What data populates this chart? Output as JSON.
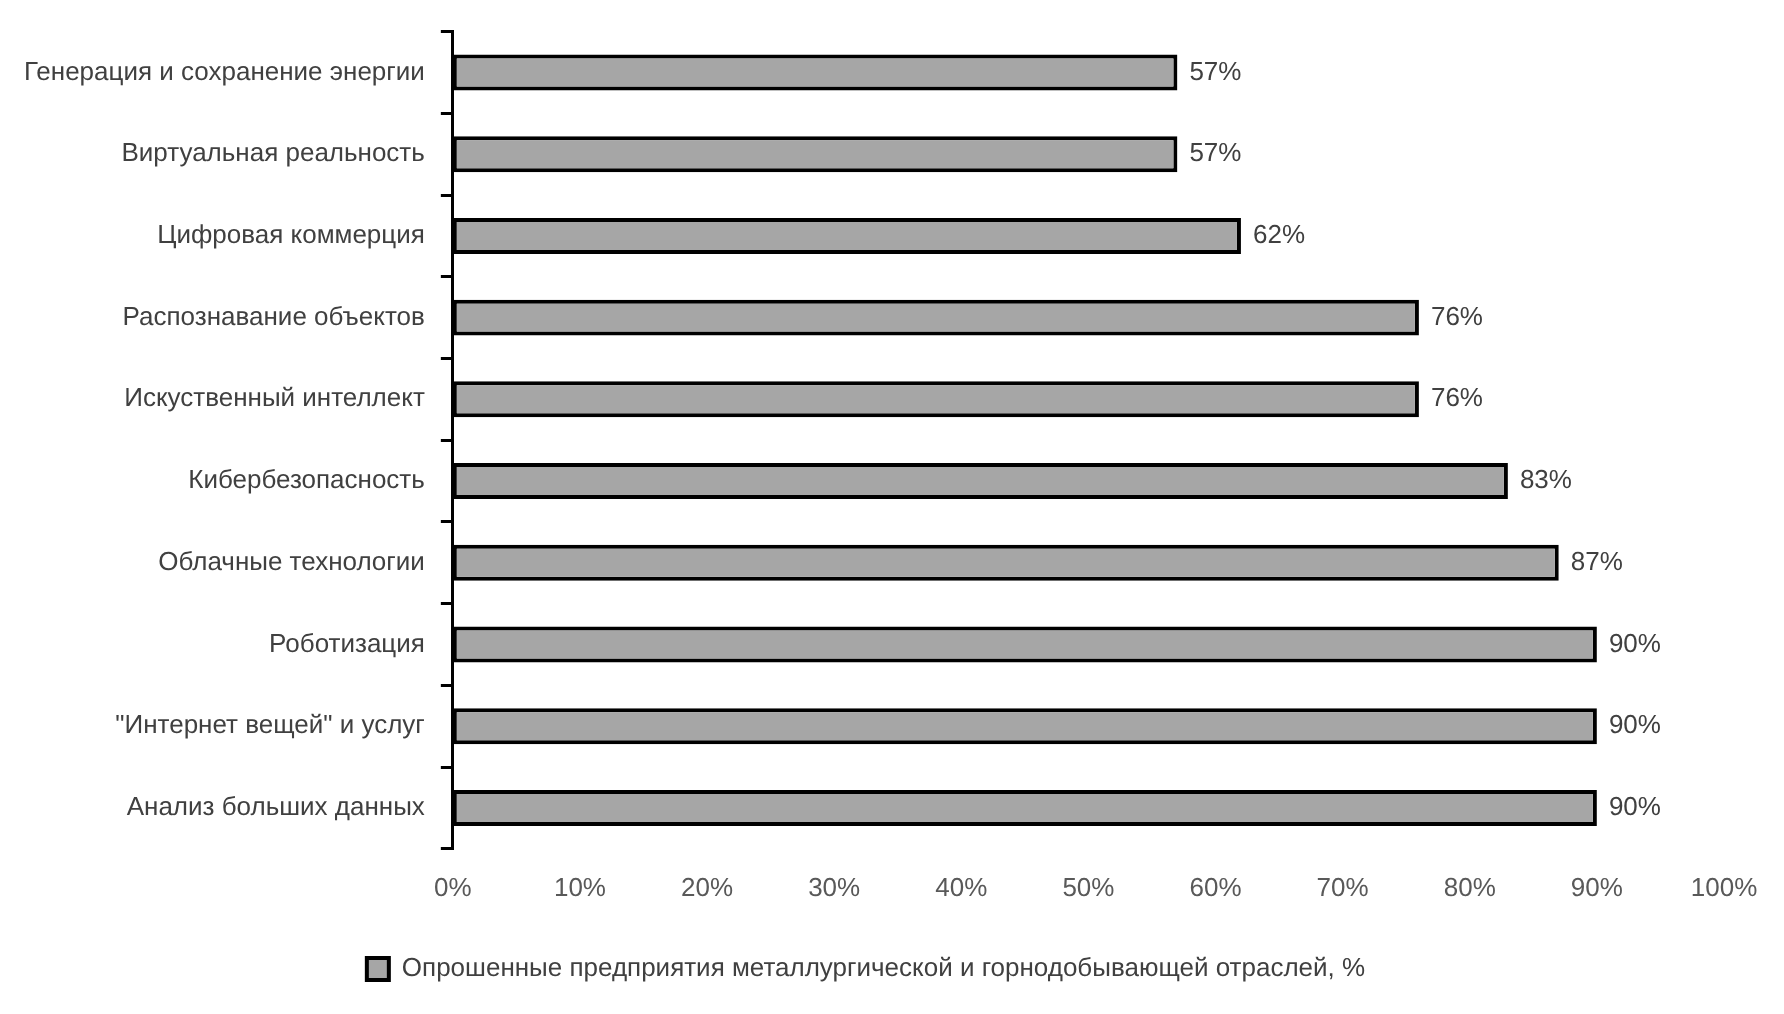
{
  "chart_data": {
    "type": "bar",
    "orientation": "horizontal",
    "categories": [
      "Генерация и сохранение энергии",
      "Виртуальная реальность",
      "Цифровая коммерция",
      "Распознавание объектов",
      "Искуственный интеллект",
      "Кибербезопасность",
      "Облачные технологии",
      "Роботизация",
      "\"Интернет вещей\" и услуг",
      "Анализ больших данных"
    ],
    "series": [
      {
        "name": "Опрошенные предприятия металлургической и горнодобывающей отраслей, %",
        "color": "#a6a6a6",
        "values": [
          57,
          57,
          62,
          76,
          76,
          83,
          87,
          90,
          90,
          90
        ],
        "value_labels": [
          "57%",
          "57%",
          "62%",
          "76%",
          "76%",
          "83%",
          "87%",
          "90%",
          "90%",
          "90%"
        ]
      }
    ],
    "xlim": [
      0,
      100
    ],
    "xticks": [
      {
        "value": 0,
        "label": "0%"
      },
      {
        "value": 10,
        "label": "10%"
      },
      {
        "value": 20,
        "label": "20%"
      },
      {
        "value": 30,
        "label": "30%"
      },
      {
        "value": 40,
        "label": "40%"
      },
      {
        "value": 50,
        "label": "50%"
      },
      {
        "value": 60,
        "label": "60%"
      },
      {
        "value": 70,
        "label": "70%"
      },
      {
        "value": 80,
        "label": "80%"
      },
      {
        "value": 90,
        "label": "90%"
      },
      {
        "value": 100,
        "label": "100%"
      }
    ],
    "grid": false,
    "legend": "bottom"
  }
}
